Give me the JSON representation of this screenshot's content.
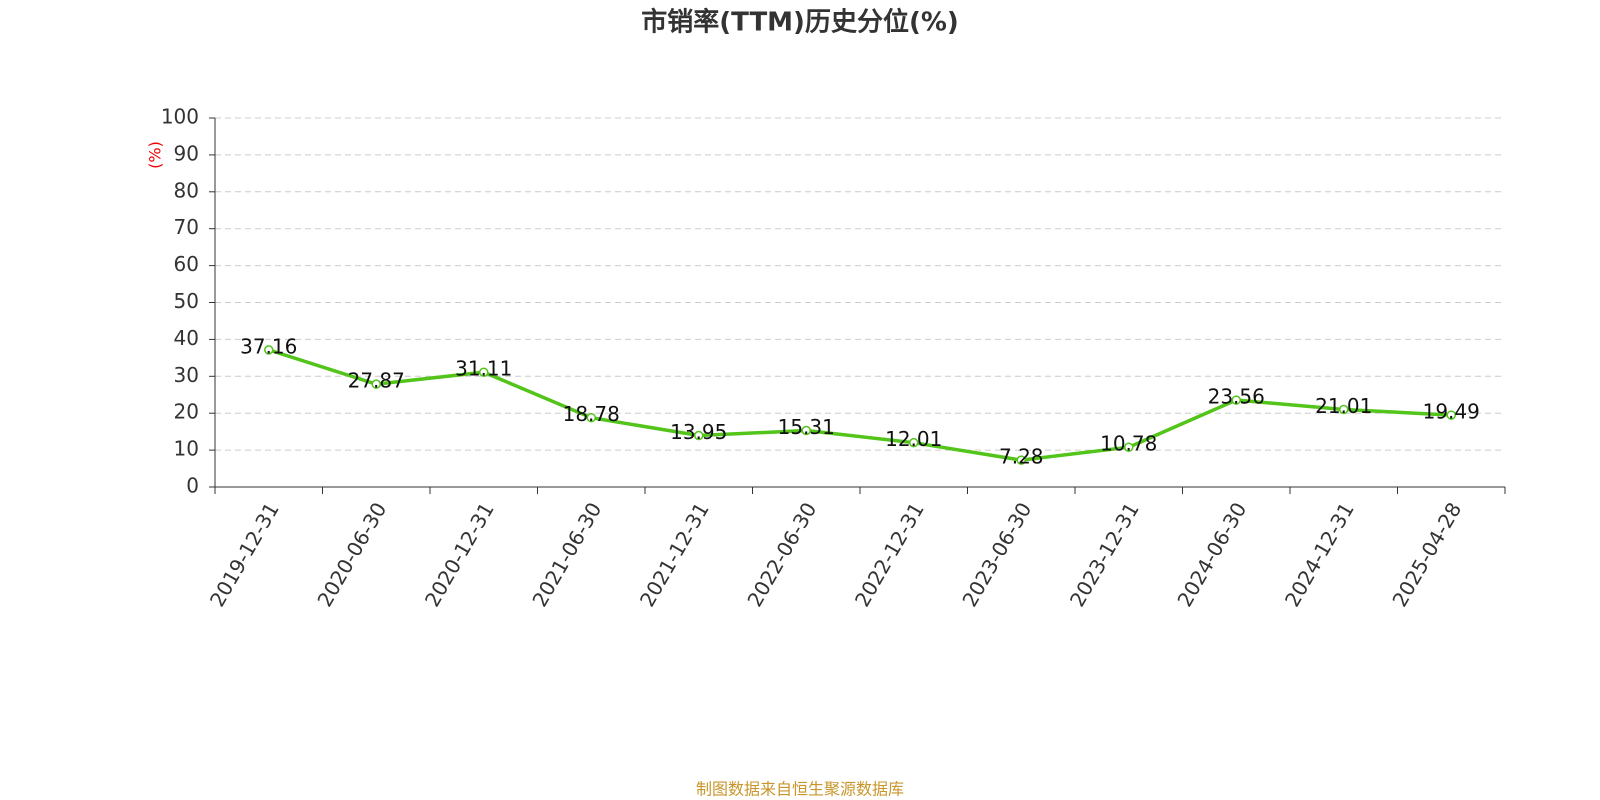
{
  "chart_data": {
    "type": "line",
    "title": "市销率(TTM)历史分位(%)",
    "y_label": "(%)",
    "categories": [
      "2019-12-31",
      "2020-06-30",
      "2020-12-31",
      "2021-06-30",
      "2021-12-31",
      "2022-06-30",
      "2022-12-31",
      "2023-06-30",
      "2023-12-31",
      "2024-06-30",
      "2024-12-31",
      "2025-04-28"
    ],
    "values": [
      37.16,
      27.87,
      31.11,
      18.78,
      13.95,
      15.31,
      12.01,
      7.28,
      10.78,
      23.56,
      21.01,
      19.49
    ],
    "color": "#52c41a",
    "ylim": [
      0,
      100
    ],
    "yticks": [
      0,
      10,
      20,
      30,
      40,
      50,
      60,
      70,
      80,
      90,
      100
    ],
    "grid": true,
    "source": "制图数据来自恒生聚源数据库"
  }
}
